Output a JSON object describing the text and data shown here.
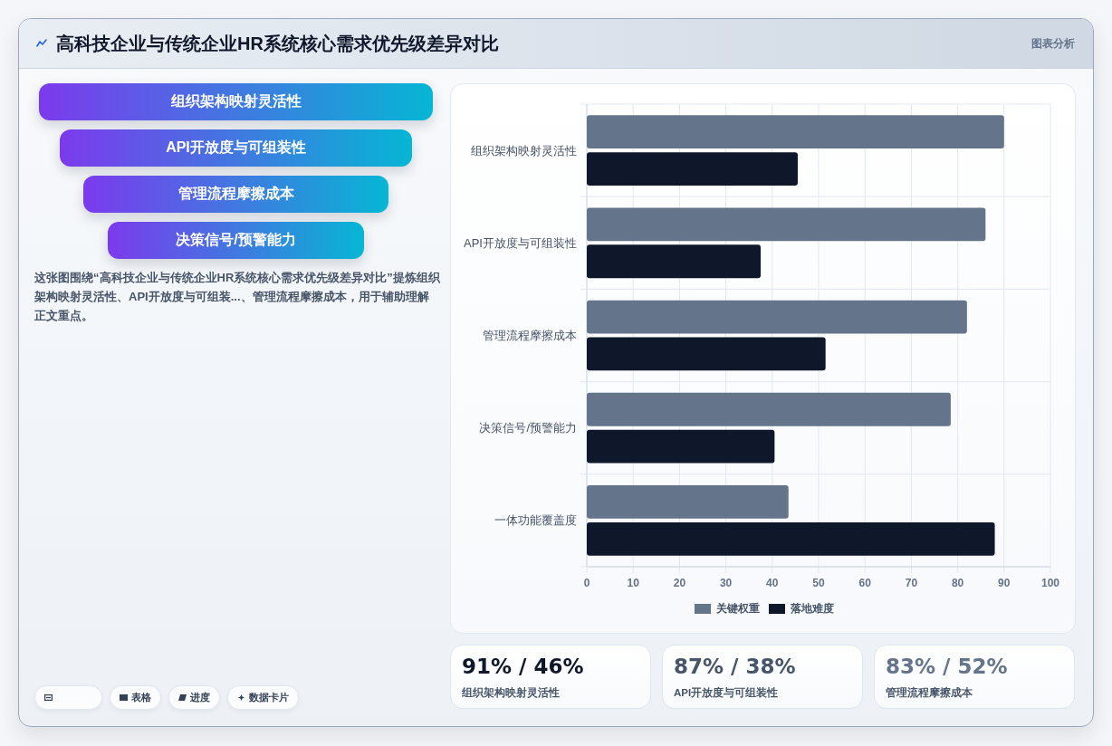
{
  "chart_data": [
    {
      "type": "other",
      "title": "高科技企业与传统企业HR系统核心需求优先级差异对比",
      "annotations": [
        "图表分析",
        "组织架构映射灵活性",
        "API开放度与可组装性",
        "管理流程摩擦成本",
        "决策信号/预警能力",
        "这张图围绕“高科技企业与传统企业HR系统核心需求优先级差异对比”提炼组织架构映射灵活性、API开放度与可组装...、管理流程摩擦成本，用于辅助理解正文重点。",
        "表格",
        "进度",
        "数据卡片"
      ]
    },
    {
      "type": "bar",
      "orientation": "horizontal",
      "categories": [
        "组织架构映射灵活性",
        "API开放度与可组装性",
        "管理流程摩擦成本",
        "决策信号/预警能力",
        "一体功能覆盖度"
      ],
      "series": [
        {
          "name": "关键权重",
          "color": "#64748b",
          "values": [
            90,
            86,
            82,
            78.5,
            43.5
          ]
        },
        {
          "name": "落地难度",
          "color": "#0f172a",
          "values": [
            45.5,
            37.5,
            51.5,
            40.5,
            88
          ]
        }
      ],
      "xlim": [
        0,
        100
      ],
      "xticks": [
        0,
        10,
        20,
        30,
        40,
        50,
        60,
        70,
        80,
        90,
        100
      ],
      "grid": true,
      "legend": "bottom"
    },
    {
      "type": "other",
      "annotations": [
        "91% / 46%",
        "组织架构映射灵活性",
        "87% / 38%",
        "API开放度与可组装性",
        "83% / 52%",
        "管理流程摩擦成本"
      ]
    }
  ]
}
